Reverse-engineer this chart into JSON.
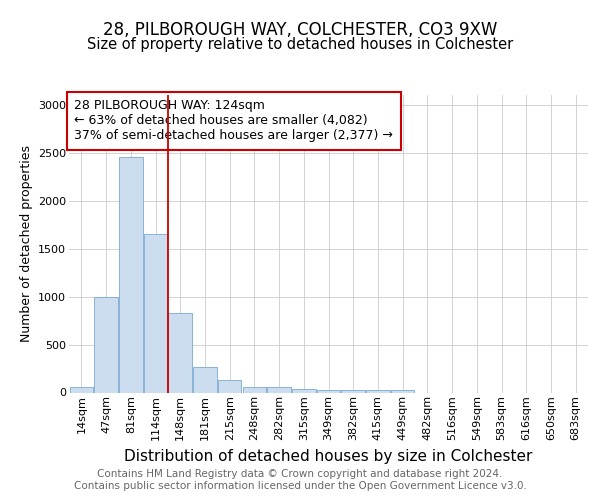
{
  "title1": "28, PILBOROUGH WAY, COLCHESTER, CO3 9XW",
  "title2": "Size of property relative to detached houses in Colchester",
  "xlabel": "Distribution of detached houses by size in Colchester",
  "ylabel": "Number of detached properties",
  "categories": [
    "14sqm",
    "47sqm",
    "81sqm",
    "114sqm",
    "148sqm",
    "181sqm",
    "215sqm",
    "248sqm",
    "282sqm",
    "315sqm",
    "349sqm",
    "382sqm",
    "415sqm",
    "449sqm",
    "482sqm",
    "516sqm",
    "549sqm",
    "583sqm",
    "616sqm",
    "650sqm",
    "683sqm"
  ],
  "values": [
    60,
    1000,
    2450,
    1650,
    830,
    270,
    130,
    60,
    55,
    35,
    25,
    30,
    25,
    30,
    0,
    0,
    0,
    0,
    0,
    0,
    0
  ],
  "bar_color": "#ccddf0",
  "bar_edge_color": "#7aaad0",
  "annotation_text": "28 PILBOROUGH WAY: 124sqm\n← 63% of detached houses are smaller (4,082)\n37% of semi-detached houses are larger (2,377) →",
  "annotation_box_color": "#ffffff",
  "annotation_box_edge_color": "#cc0000",
  "vline_color": "#cc0000",
  "ylim": [
    0,
    3100
  ],
  "yticks": [
    0,
    500,
    1000,
    1500,
    2000,
    2500,
    3000
  ],
  "background_color": "#ffffff",
  "grid_color": "#cccccc",
  "footer_text": "Contains HM Land Registry data © Crown copyright and database right 2024.\nContains public sector information licensed under the Open Government Licence v3.0.",
  "title1_fontsize": 12,
  "title2_fontsize": 10.5,
  "xlabel_fontsize": 11,
  "ylabel_fontsize": 9,
  "tick_fontsize": 8,
  "footer_fontsize": 7.5,
  "annotation_fontsize": 9
}
